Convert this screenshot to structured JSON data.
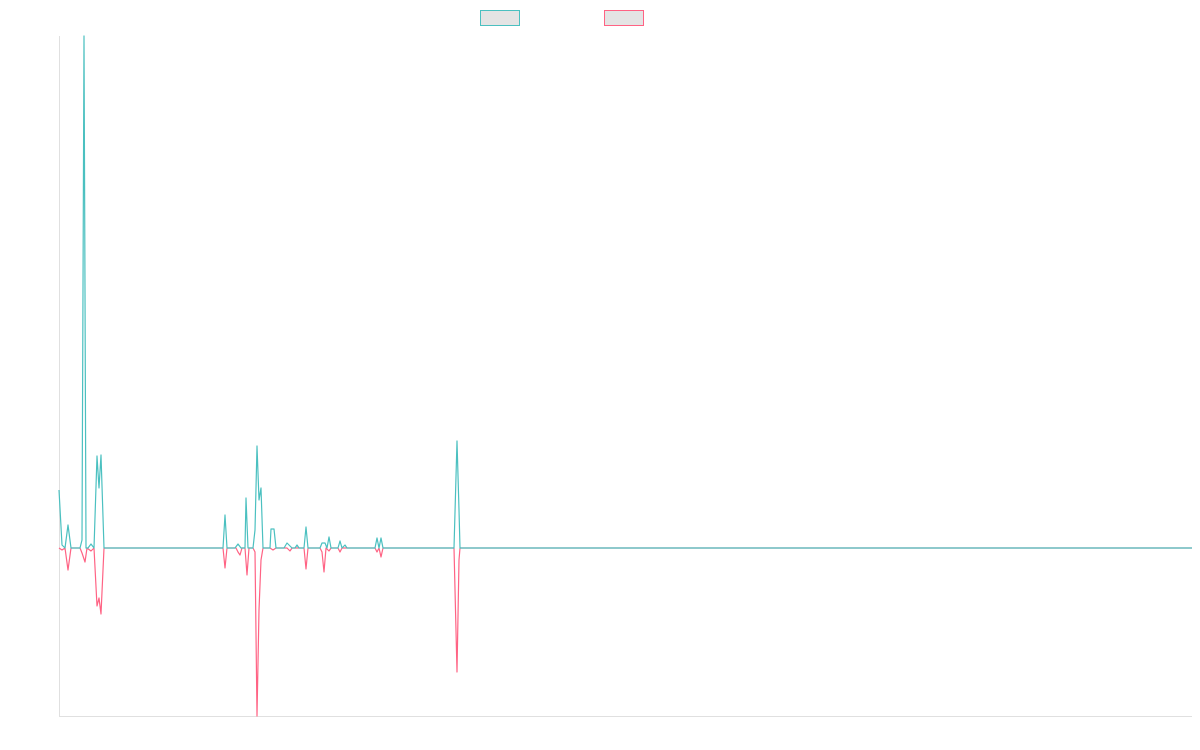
{
  "chart_data": {
    "type": "line",
    "title": "",
    "xlabel": "",
    "ylabel": "",
    "xlim": [
      0,
      1133
    ],
    "ylim": [
      -168,
      512
    ],
    "grid": false,
    "legend_placement": "top-center",
    "series": [
      {
        "name": "",
        "color": "#4bc0c0",
        "points": [
          [
            0,
            58
          ],
          [
            3,
            3
          ],
          [
            6,
            0
          ],
          [
            9,
            23
          ],
          [
            12,
            0
          ],
          [
            21,
            0
          ],
          [
            23,
            8
          ],
          [
            25,
            512
          ],
          [
            27,
            0
          ],
          [
            29,
            0
          ],
          [
            32,
            4
          ],
          [
            35,
            0
          ],
          [
            38,
            92
          ],
          [
            40,
            60
          ],
          [
            42,
            93
          ],
          [
            45,
            0
          ],
          [
            164,
            0
          ],
          [
            166,
            33
          ],
          [
            168,
            0
          ],
          [
            176,
            0
          ],
          [
            179,
            4
          ],
          [
            182,
            0
          ],
          [
            186,
            0
          ],
          [
            187,
            50
          ],
          [
            189,
            0
          ],
          [
            194,
            0
          ],
          [
            196,
            18
          ],
          [
            198,
            102
          ],
          [
            200,
            48
          ],
          [
            202,
            60
          ],
          [
            204,
            0
          ],
          [
            211,
            0
          ],
          [
            212,
            19
          ],
          [
            215,
            19
          ],
          [
            217,
            0
          ],
          [
            225,
            0
          ],
          [
            228,
            5
          ],
          [
            233,
            0
          ],
          [
            236,
            0
          ],
          [
            238,
            3
          ],
          [
            240,
            0
          ],
          [
            245,
            0
          ],
          [
            247,
            21
          ],
          [
            249,
            0
          ],
          [
            261,
            0
          ],
          [
            263,
            5
          ],
          [
            266,
            5
          ],
          [
            268,
            0
          ],
          [
            270,
            11
          ],
          [
            272,
            0
          ],
          [
            279,
            0
          ],
          [
            281,
            7
          ],
          [
            283,
            0
          ],
          [
            286,
            3
          ],
          [
            288,
            0
          ],
          [
            316,
            0
          ],
          [
            318,
            10
          ],
          [
            320,
            0
          ],
          [
            322,
            10
          ],
          [
            324,
            0
          ],
          [
            395,
            0
          ],
          [
            398,
            107
          ],
          [
            400,
            38
          ],
          [
            401,
            0
          ],
          [
            1133,
            0
          ]
        ]
      },
      {
        "name": "",
        "color": "#ff6384",
        "points": [
          [
            0,
            0
          ],
          [
            3,
            -2
          ],
          [
            6,
            0
          ],
          [
            9,
            -22
          ],
          [
            12,
            0
          ],
          [
            21,
            0
          ],
          [
            23,
            -5
          ],
          [
            26,
            -14
          ],
          [
            28,
            0
          ],
          [
            32,
            -3
          ],
          [
            35,
            0
          ],
          [
            38,
            -58
          ],
          [
            40,
            -50
          ],
          [
            42,
            -66
          ],
          [
            45,
            0
          ],
          [
            164,
            0
          ],
          [
            166,
            -20
          ],
          [
            168,
            0
          ],
          [
            177,
            0
          ],
          [
            179,
            -4
          ],
          [
            181,
            -7
          ],
          [
            183,
            0
          ],
          [
            186,
            0
          ],
          [
            188,
            -27
          ],
          [
            190,
            0
          ],
          [
            194,
            0
          ],
          [
            196,
            -4
          ],
          [
            198,
            -168
          ],
          [
            200,
            -62
          ],
          [
            202,
            -12
          ],
          [
            204,
            0
          ],
          [
            211,
            0
          ],
          [
            214,
            -2
          ],
          [
            217,
            0
          ],
          [
            228,
            0
          ],
          [
            231,
            -3
          ],
          [
            233,
            0
          ],
          [
            245,
            0
          ],
          [
            247,
            -21
          ],
          [
            249,
            0
          ],
          [
            261,
            0
          ],
          [
            263,
            -4
          ],
          [
            265,
            -24
          ],
          [
            267,
            0
          ],
          [
            270,
            -3
          ],
          [
            272,
            0
          ],
          [
            279,
            0
          ],
          [
            281,
            -4
          ],
          [
            283,
            0
          ],
          [
            316,
            0
          ],
          [
            318,
            -4
          ],
          [
            320,
            0
          ],
          [
            322,
            -9
          ],
          [
            324,
            0
          ],
          [
            395,
            0
          ],
          [
            398,
            -124
          ],
          [
            400,
            -12
          ],
          [
            401,
            0
          ],
          [
            1133,
            0
          ]
        ]
      }
    ]
  }
}
